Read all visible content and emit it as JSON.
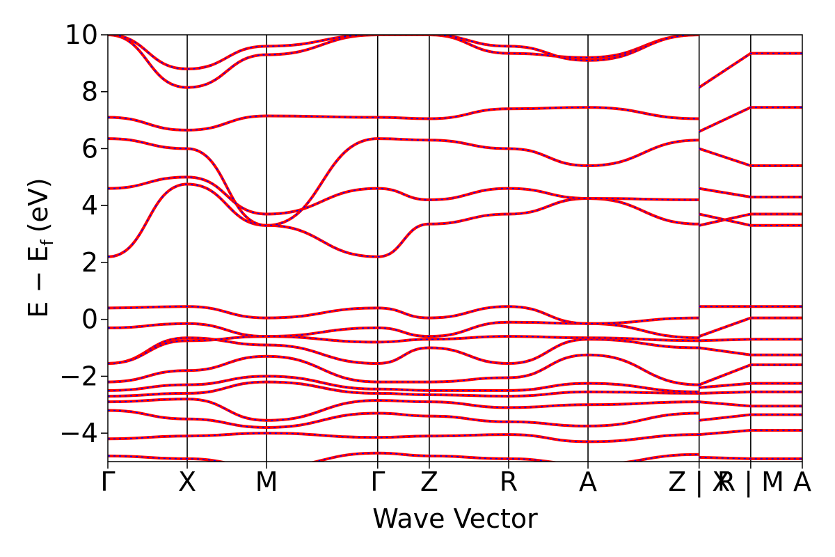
{
  "chart_data": {
    "type": "line",
    "title": "",
    "xlabel": "Wave Vector",
    "ylabel": "E − E",
    "ylabel_subscript": "f",
    "ylabel_unit": "(eV)",
    "ylim": [
      -5,
      10
    ],
    "y_ticks": [
      -4,
      -2,
      0,
      2,
      4,
      6,
      8,
      10
    ],
    "y_tick_labels": [
      "−4",
      "−2",
      "0",
      "2",
      "4",
      "6",
      "8",
      "10"
    ],
    "x_ticks": [
      0,
      1,
      2,
      3.4,
      4.05,
      5.05,
      6.05,
      7.45,
      8.1,
      8.75
    ],
    "x_tick_labels": [
      "Γ",
      "X",
      "M",
      "Γ",
      "Z",
      "R",
      "A",
      "Z | X",
      "R | M",
      "A"
    ],
    "xlim": [
      0,
      8.75
    ],
    "grid": false,
    "legend": "none",
    "colors": {
      "series_a": "#ff0000",
      "series_b": "#0000ff",
      "kpath_lines": "#000000"
    },
    "series": [
      {
        "bands_at_kpoints": {
          "k": [
            0,
            1,
            2,
            3.4,
            4.05,
            5.05,
            6.05,
            7.45
          ],
          "bands": [
            [
              -4.8,
              -4.9,
              -5.2,
              -4.7,
              -4.8,
              -4.9,
              -5.1,
              -4.75
            ],
            [
              -4.2,
              -4.1,
              -4.0,
              -4.15,
              -4.1,
              -4.05,
              -4.3,
              -4.05
            ],
            [
              -3.2,
              -3.5,
              -3.8,
              -3.3,
              -3.4,
              -3.6,
              -3.75,
              -3.3
            ],
            [
              -2.9,
              -2.8,
              -3.55,
              -2.85,
              -2.9,
              -3.1,
              -3.0,
              -2.9
            ],
            [
              -2.7,
              -2.6,
              -2.2,
              -2.6,
              -2.65,
              -2.7,
              -2.55,
              -2.6
            ],
            [
              -2.5,
              -2.3,
              -2.0,
              -2.45,
              -2.5,
              -2.5,
              -2.25,
              -2.55
            ],
            [
              -2.2,
              -1.8,
              -1.3,
              -2.2,
              -2.2,
              -2.05,
              -1.25,
              -2.3
            ],
            [
              -1.55,
              -0.65,
              -0.9,
              -1.55,
              -1.0,
              -1.55,
              -0.7,
              -1.0
            ],
            [
              -1.55,
              -0.75,
              -0.6,
              -0.8,
              -0.7,
              -0.6,
              -0.65,
              -0.75
            ],
            [
              -0.3,
              -0.15,
              -0.6,
              -0.3,
              -0.6,
              -0.1,
              -0.15,
              -0.65
            ],
            [
              0.4,
              0.45,
              0.05,
              0.4,
              0.05,
              0.45,
              -0.15,
              0.05
            ],
            [
              2.2,
              4.75,
              3.3,
              2.2,
              3.35,
              3.7,
              4.25,
              3.35
            ],
            [
              4.6,
              5.0,
              3.7,
              4.6,
              4.2,
              4.6,
              4.25,
              4.2
            ],
            [
              6.35,
              6.0,
              3.3,
              6.35,
              6.3,
              6.0,
              5.4,
              6.3
            ],
            [
              7.1,
              6.65,
              7.15,
              7.1,
              7.05,
              7.4,
              7.45,
              7.05
            ],
            [
              10.0,
              8.15,
              9.3,
              10.0,
              10.0,
              9.35,
              9.2,
              10.0
            ],
            [
              10.0,
              8.8,
              9.6,
              10.0,
              10.0,
              9.6,
              9.1,
              10.0
            ]
          ]
        }
      }
    ]
  }
}
